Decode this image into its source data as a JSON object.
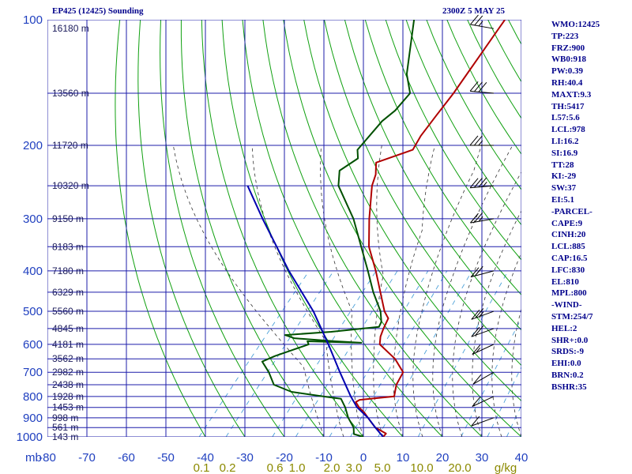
{
  "header": {
    "station": "EP425 (12425) Sounding",
    "time": "2300Z  5 MAY 25"
  },
  "indices": [
    "WMO:12425",
    "TP:223",
    "FRZ:900",
    "WB0:918",
    "PW:0.39",
    "RH:40.4",
    "MAXT:9.3",
    "TH:5417",
    "L57:5.6",
    "LCL:978",
    "LI:16.2",
    "SI:16.9",
    "TT:28",
    "KI:-29",
    "SW:37",
    "EI:5.1",
    "-PARCEL-",
    "CAPE:9",
    "CINH:20",
    "LCL:885",
    "CAP:16.5",
    "LFC:830",
    "EL:810",
    "MPL:800",
    "-WIND-",
    "STM:254/7",
    "HEL:2",
    "SHR+:0.0",
    "SRDS:-9",
    "EHI:0.0",
    "BRN:0.2",
    "BSHR:35"
  ],
  "chart_data": {
    "type": "line",
    "title": "EP425 (12425) Sounding",
    "xlabel": "",
    "ylabel": "mb",
    "y_scale": "log",
    "ylim": [
      1000,
      100
    ],
    "xlim": [
      -80,
      40
    ],
    "skew": true,
    "pressure_ticks": [
      100,
      200,
      300,
      400,
      500,
      600,
      700,
      800,
      900,
      1000
    ],
    "temperature_ticks": [
      -80,
      -70,
      -60,
      -50,
      -40,
      -30,
      -20,
      -10,
      0,
      10,
      20,
      30,
      40
    ],
    "temperature_tick_labels": [
      "-80",
      "-70",
      "-60",
      "-50",
      "-40",
      "-30",
      "-20",
      "-10",
      "0",
      "10",
      "20",
      "30",
      "40"
    ],
    "mixing_ratio_labels": [
      "0.1",
      "0.2",
      "0.6",
      "1.0",
      "2.0",
      "3.0",
      "5.0",
      "10.0",
      "20.0",
      "g/kg"
    ],
    "axis_corner_label": "mb",
    "height_labels": [
      {
        "p": 105,
        "label": "16180 m"
      },
      {
        "p": 150,
        "label": "13560 m"
      },
      {
        "p": 200,
        "label": "11720 m"
      },
      {
        "p": 250,
        "label": "10320 m"
      },
      {
        "p": 300,
        "label": "9150 m"
      },
      {
        "p": 350,
        "label": "8183 m"
      },
      {
        "p": 400,
        "label": "7180 m"
      },
      {
        "p": 450,
        "label": "6329 m"
      },
      {
        "p": 500,
        "label": "5560 m"
      },
      {
        "p": 550,
        "label": "4845 m"
      },
      {
        "p": 600,
        "label": "4181 m"
      },
      {
        "p": 650,
        "label": "3562 m"
      },
      {
        "p": 700,
        "label": "2982 m"
      },
      {
        "p": 750,
        "label": "2438 m"
      },
      {
        "p": 800,
        "label": "1928 m"
      },
      {
        "p": 850,
        "label": "1453 m"
      },
      {
        "p": 900,
        "label": "998 m"
      },
      {
        "p": 950,
        "label": "561 m"
      },
      {
        "p": 1000,
        "label": "143 m"
      }
    ],
    "series": [
      {
        "points": [
          [
            1000,
            5.0
          ],
          [
            982,
            5.0
          ],
          [
            950,
            1.0
          ],
          [
            925,
            -1.0
          ],
          [
            900,
            -3.0
          ],
          [
            875,
            -5.0
          ],
          [
            850,
            -7.5
          ],
          [
            825,
            -9.5
          ],
          [
            815,
            -9.0
          ],
          [
            800,
            -1.0
          ],
          [
            775,
            -2.0
          ],
          [
            750,
            -3.0
          ],
          [
            700,
            -4.0
          ],
          [
            650,
            -9.0
          ],
          [
            600,
            -16.0
          ],
          [
            575,
            -17.5
          ],
          [
            550,
            -18.5
          ],
          [
            520,
            -19.5
          ],
          [
            500,
            -22.0
          ],
          [
            400,
            -33.0
          ],
          [
            350,
            -40.0
          ],
          [
            300,
            -46.0
          ],
          [
            250,
            -52.5
          ],
          [
            235,
            -54.0
          ],
          [
            220,
            -56.5
          ],
          [
            205,
            -50.0
          ],
          [
            190,
            -51.0
          ],
          [
            170,
            -51.5
          ],
          [
            150,
            -52.0
          ],
          [
            100,
            -55.0
          ]
        ]
      },
      {
        "points": [
          [
            1000,
            0.0
          ],
          [
            985,
            -3.0
          ],
          [
            950,
            -4.5
          ],
          [
            900,
            -8.0
          ],
          [
            850,
            -11.0
          ],
          [
            810,
            -14.0
          ],
          [
            800,
            -19.0
          ],
          [
            780,
            -28.0
          ],
          [
            750,
            -34.0
          ],
          [
            700,
            -38.0
          ],
          [
            660,
            -42.0
          ],
          [
            640,
            -40.0
          ],
          [
            600,
            -34.0
          ],
          [
            590,
            -35.0
          ],
          [
            595,
            -21.0
          ],
          [
            590,
            -28.0
          ],
          [
            580,
            -39.0
          ],
          [
            570,
            -42.0
          ],
          [
            560,
            -31.0
          ],
          [
            545,
            -20.0
          ],
          [
            530,
            -20.5
          ],
          [
            500,
            -23.0
          ],
          [
            450,
            -29.0
          ],
          [
            400,
            -35.0
          ],
          [
            300,
            -50.0
          ],
          [
            250,
            -61.0
          ],
          [
            230,
            -64.0
          ],
          [
            215,
            -62.0
          ],
          [
            205,
            -64.0
          ],
          [
            190,
            -64.0
          ],
          [
            175,
            -64.0
          ],
          [
            165,
            -63.0
          ],
          [
            150,
            -63.0
          ],
          [
            135,
            -68.0
          ],
          [
            100,
            -78.0
          ]
        ]
      },
      {
        "points": [
          [
            1000,
            5.0
          ],
          [
            950,
            1.0
          ],
          [
            900,
            -3.0
          ],
          [
            850,
            -8.0
          ],
          [
            800,
            -12.0
          ],
          [
            700,
            -20.0
          ],
          [
            600,
            -29.0
          ],
          [
            500,
            -40.0
          ],
          [
            400,
            -55.0
          ],
          [
            300,
            -73.0
          ],
          [
            250,
            -84.0
          ]
        ]
      }
    ],
    "wind_barbs": [
      {
        "p": 105,
        "dir": 280,
        "kt": 25
      },
      {
        "p": 150,
        "dir": 275,
        "kt": 30
      },
      {
        "p": 200,
        "dir": 270,
        "kt": 25
      },
      {
        "p": 250,
        "dir": 265,
        "kt": 35
      },
      {
        "p": 300,
        "dir": 260,
        "kt": 25
      },
      {
        "p": 400,
        "dir": 255,
        "kt": 20
      },
      {
        "p": 500,
        "dir": 250,
        "kt": 25
      },
      {
        "p": 550,
        "dir": 250,
        "kt": 20
      },
      {
        "p": 600,
        "dir": 245,
        "kt": 15
      },
      {
        "p": 700,
        "dir": 240,
        "kt": 10
      },
      {
        "p": 800,
        "dir": 245,
        "kt": 10
      },
      {
        "p": 900,
        "dir": 250,
        "kt": 10
      }
    ],
    "colors": {
      "grid": "#1c1caa",
      "dry_adiabat": "#10a010",
      "moist_adiabat": "#333333",
      "mixing_ratio": "#4aa0d8",
      "temperature": "#b00000",
      "dewpoint": "#005000",
      "parcel": "#0000b0"
    }
  }
}
